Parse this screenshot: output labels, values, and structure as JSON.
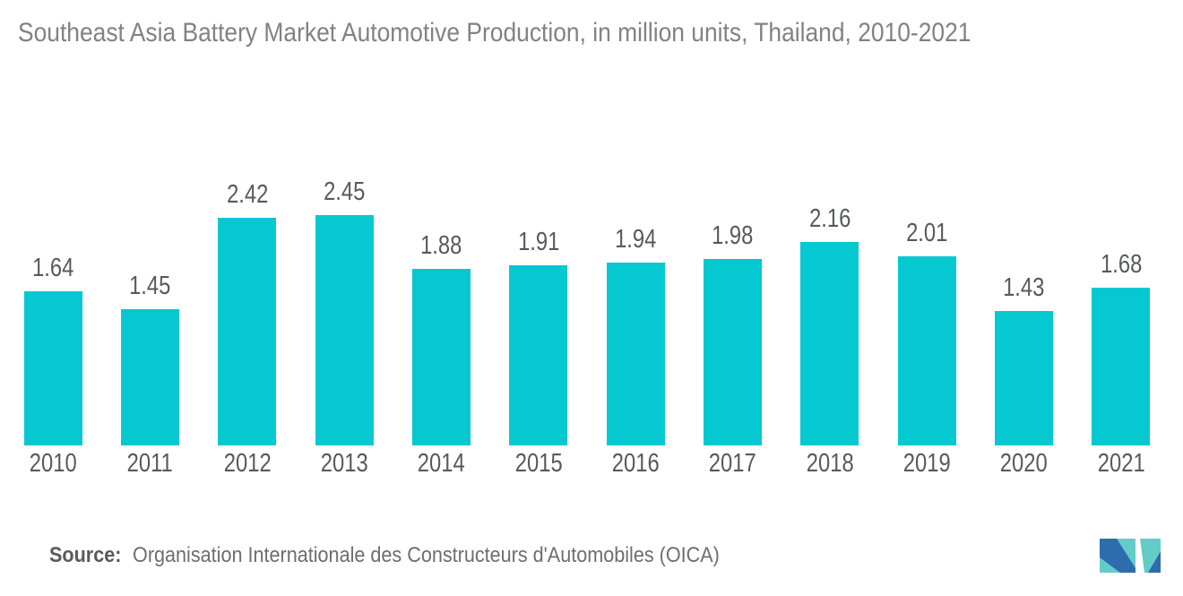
{
  "chart_data": {
    "type": "bar",
    "title": "Southeast Asia Battery Market Automotive Production, in million units, Thailand, 2010-2021",
    "categories": [
      "2010",
      "2011",
      "2012",
      "2013",
      "2014",
      "2015",
      "2016",
      "2017",
      "2018",
      "2019",
      "2020",
      "2021"
    ],
    "values": [
      1.64,
      1.45,
      2.42,
      2.45,
      1.88,
      1.91,
      1.94,
      1.98,
      2.16,
      2.01,
      1.43,
      1.68
    ],
    "xlabel": "",
    "ylabel": "",
    "ylim": [
      0,
      4.7
    ],
    "grid": "off",
    "legend": "none",
    "data_labels": "above-bars",
    "bar_color": "#06C8D0",
    "label_color": "#58595B",
    "title_color": "#808285"
  },
  "source": {
    "label": "Source:",
    "text": "Organisation Internationale des Constructeurs d'Automobiles (OICA)"
  },
  "logo": {
    "name": "mordor-intelligence-logo",
    "teal": "#63CCC9",
    "blue": "#2E6CB0"
  }
}
